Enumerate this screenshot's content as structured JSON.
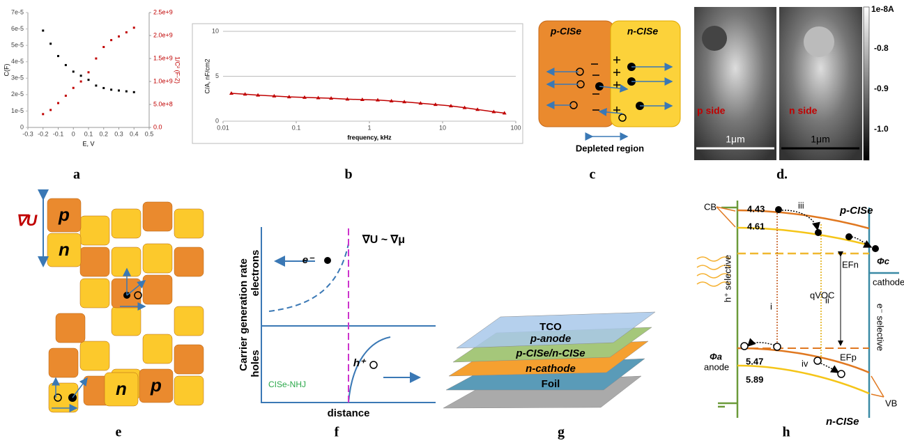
{
  "chart_data": [
    {
      "type": "scatter",
      "x_label": "E, V",
      "y_label": "C(F)",
      "y2_label": "1/C² (F-2)",
      "x": [
        -0.2,
        -0.15,
        -0.1,
        -0.05,
        0,
        0.05,
        0.1,
        0.15,
        0.2,
        0.25,
        0.3,
        0.35,
        0.4
      ],
      "series": [
        {
          "color": "#000000",
          "values": [
            5.9e-05,
            5.1e-05,
            4.35e-05,
            3.8e-05,
            3.4e-05,
            3.15e-05,
            2.9e-05,
            2.55e-05,
            2.4e-05,
            2.3e-05,
            2.25e-05,
            2.2e-05,
            2.15e-05
          ]
        },
        {
          "color": "#c00000",
          "axis": "y2",
          "values": [
            290000000,
            380000000,
            530000000,
            690000000,
            860000000,
            1000000000,
            1200000000,
            1500000000,
            1750000000,
            1900000000,
            1980000000,
            2070000000,
            2170000000
          ]
        }
      ],
      "xlim": [
        -0.3,
        0.5
      ],
      "xticks": [
        -0.3,
        -0.2,
        -0.1,
        0,
        0.1,
        0.2,
        0.3,
        0.4,
        0.5
      ],
      "ylim": [
        0,
        7e-05
      ],
      "yticks": [
        0,
        {
          "value": 1e-05,
          "label": "1e-5"
        },
        {
          "value": 2e-05,
          "label": "2e-5"
        },
        {
          "value": 3e-05,
          "label": "3e-5"
        },
        {
          "value": 4e-05,
          "label": "4e-5"
        },
        {
          "value": 5e-05,
          "label": "5e-5"
        },
        {
          "value": 6e-05,
          "label": "6e-5"
        },
        {
          "value": 7e-05,
          "label": "7e-5"
        }
      ],
      "y2lim": [
        0,
        2500000000
      ],
      "y2ticks": [
        {
          "value": 0,
          "label": "0.0"
        },
        {
          "value": 500000000,
          "label": "5.0e+8"
        },
        {
          "value": 1000000000,
          "label": "1.0e+9"
        },
        {
          "value": 1500000000,
          "label": "1.5e+9"
        },
        {
          "value": 2000000000,
          "label": "2.0e+9"
        },
        {
          "value": 2500000000,
          "label": "2.5e+9"
        }
      ]
    },
    {
      "type": "line",
      "x_label": "frequency, kHz",
      "y_label": "C/A, nF/cm2",
      "xscale": "log",
      "grid": true,
      "x": [
        0.013,
        0.02,
        0.03,
        0.05,
        0.08,
        0.13,
        0.2,
        0.3,
        0.5,
        0.8,
        1.3,
        2,
        3,
        5,
        8,
        13,
        20,
        30,
        50,
        70
      ],
      "series": [
        {
          "color": "#c00000",
          "values": [
            3.1,
            3.0,
            2.9,
            2.8,
            2.7,
            2.65,
            2.6,
            2.55,
            2.45,
            2.4,
            2.35,
            2.25,
            2.15,
            2.0,
            1.85,
            1.7,
            1.5,
            1.3,
            1.05,
            0.9
          ]
        }
      ],
      "xlim": [
        0.01,
        100
      ],
      "xticks": [
        0.01,
        0.1,
        1,
        10,
        100
      ],
      "ylim": [
        0,
        10
      ],
      "yticks": [
        0,
        5,
        10
      ]
    }
  ],
  "panel_labels": [
    "a",
    "b",
    "c",
    "d.",
    "e",
    "f",
    "g",
    "h"
  ],
  "panel_c": {
    "left": "p-CISe",
    "right": "n-CISe",
    "region": "Depleted region"
  },
  "panel_d": {
    "left": "p side",
    "right": "n side",
    "scale_left": "1μm",
    "scale_right": "1μm",
    "colorbar": [
      "1e-8A",
      "-0.8",
      "-0.9",
      "-1.0"
    ]
  },
  "panel_e": {
    "gradient": "∇U",
    "blocks": [
      "p",
      "n",
      "n",
      "p"
    ]
  },
  "panel_f": {
    "equation": "∇U ~ ∇μ",
    "y_label": "Carrier generation rate",
    "top": "electrons",
    "bottom": "holes",
    "electron": "e⁻",
    "hole": "h⁺",
    "material": "CISe-NHJ",
    "x_label": "distance"
  },
  "panel_g": {
    "layers": [
      "TCO",
      "p-anode",
      "p-CISe/n-CISe",
      "n-cathode",
      "Foil"
    ]
  },
  "panel_h": {
    "cb_top": "4.43",
    "cb_low": "4.61",
    "iii": "iii",
    "p_label": "p-CISe",
    "cb": "CB",
    "efn": "EFn",
    "phi_c": "Φc",
    "cathode": "cathode",
    "h_sel": "h⁺ selective",
    "e_sel": "e⁻ selective",
    "qvoc": "qVOC",
    "i": "i",
    "ii": "ii",
    "phi_a": "Φa",
    "anode": "anode",
    "vb_top": "5.47",
    "vb_low": "5.89",
    "iv": "iv",
    "efp": "EFp",
    "vb": "VB",
    "n_label": "n-CISe"
  }
}
